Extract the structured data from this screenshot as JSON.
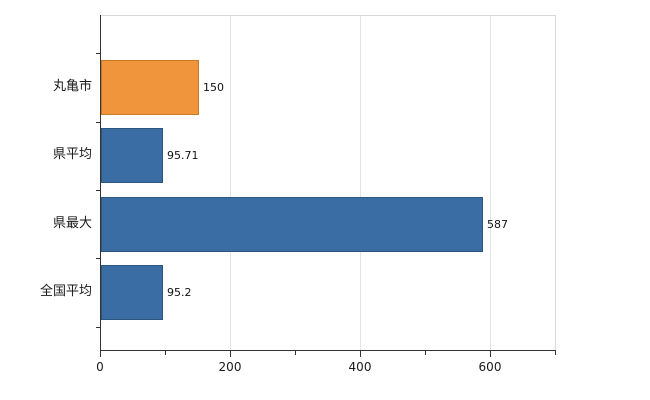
{
  "chart_data": {
    "type": "bar",
    "orientation": "horizontal",
    "title": "",
    "xlabel": "",
    "ylabel": "",
    "categories": [
      "丸亀市",
      "県平均",
      "県最大",
      "全国平均"
    ],
    "values": [
      150,
      95.71,
      587,
      95.2
    ],
    "value_labels": [
      "150",
      "95.71",
      "587",
      "95.2"
    ],
    "bar_colors": [
      "#f0953c",
      "#3a6da4",
      "#3a6da4",
      "#3a6da4"
    ],
    "bar_border_colors": [
      "#c87a23",
      "#2c567f",
      "#2c567f",
      "#2c567f"
    ],
    "xlim": [
      0,
      700
    ],
    "x_ticks": [
      0,
      200,
      400,
      600
    ],
    "x_tick_labels": [
      "0",
      "200",
      "400",
      "600"
    ],
    "grid": "vertical",
    "legend": "none"
  },
  "colors": {
    "axis": "#333333",
    "grid": "#e3e3e3",
    "plot_border": "#d9d9d9",
    "background": "#ffffff",
    "highlight_bar": "#f0953c",
    "default_bar": "#3a6da4"
  }
}
